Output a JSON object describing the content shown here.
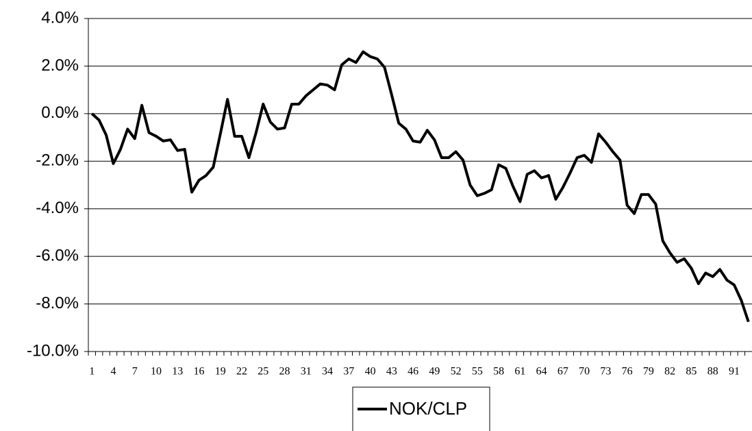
{
  "chart_data": {
    "type": "line",
    "categories": [
      "1",
      null,
      null,
      "4",
      null,
      null,
      "7",
      null,
      null,
      "10",
      null,
      null,
      "13",
      null,
      null,
      "16",
      null,
      null,
      "19",
      null,
      null,
      "22",
      null,
      null,
      "25",
      null,
      null,
      "28",
      null,
      null,
      "31",
      null,
      null,
      "34",
      null,
      null,
      "37",
      null,
      null,
      "40",
      null,
      null,
      "43",
      null,
      null,
      "46",
      null,
      null,
      "49",
      null,
      null,
      "52",
      null,
      null,
      "55",
      null,
      null,
      "58",
      null,
      null,
      "61",
      null,
      null,
      "64",
      null,
      null,
      "67",
      null,
      null,
      "70",
      null,
      null,
      "73",
      null,
      null,
      "76",
      null,
      null,
      "79",
      null,
      null,
      "82",
      null,
      null,
      "85",
      null,
      null,
      "88",
      null,
      null,
      "91",
      null,
      null
    ],
    "series": [
      {
        "name": "NOK/CLP",
        "color": "#000000",
        "values": [
          0.0,
          -0.27,
          -0.9,
          -2.1,
          -1.5,
          -0.65,
          -1.05,
          0.35,
          -0.8,
          -0.95,
          -1.15,
          -1.1,
          -1.55,
          -1.5,
          -3.3,
          -2.8,
          -2.6,
          -2.25,
          -0.85,
          0.6,
          -0.95,
          -0.95,
          -1.85,
          -0.8,
          0.4,
          -0.35,
          -0.65,
          -0.6,
          0.4,
          0.4,
          0.75,
          1.0,
          1.25,
          1.2,
          1.0,
          2.05,
          2.3,
          2.15,
          2.6,
          2.4,
          2.3,
          1.95,
          0.8,
          -0.4,
          -0.65,
          -1.15,
          -1.2,
          -0.7,
          -1.1,
          -1.85,
          -1.85,
          -1.6,
          -1.95,
          -3.0,
          -3.45,
          -3.35,
          -3.2,
          -2.15,
          -2.3,
          -3.05,
          -3.7,
          -2.55,
          -2.4,
          -2.7,
          -2.6,
          -3.6,
          -3.1,
          -2.5,
          -1.85,
          -1.75,
          -2.05,
          -0.85,
          -1.2,
          -1.6,
          -1.95,
          -3.85,
          -4.2,
          -3.4,
          -3.4,
          -3.8,
          -5.35,
          -5.85,
          -6.25,
          -6.1,
          -6.5,
          -7.15,
          -6.7,
          -6.85,
          -6.55,
          -7.0,
          -7.2,
          -7.85,
          -8.75
        ]
      }
    ],
    "ylim": [
      -10,
      4
    ],
    "yticks": [
      {
        "value": -10,
        "label": "-10.0%"
      },
      {
        "value": -8,
        "label": "-8.0%"
      },
      {
        "value": -6,
        "label": "-6.0%"
      },
      {
        "value": -4,
        "label": "-4.0%"
      },
      {
        "value": -2,
        "label": "-2.0%"
      },
      {
        "value": 0,
        "label": "0.0%"
      },
      {
        "value": 2,
        "label": "2.0%"
      },
      {
        "value": 4,
        "label": "4.0%"
      }
    ],
    "grid": true,
    "legend": "bottom"
  }
}
